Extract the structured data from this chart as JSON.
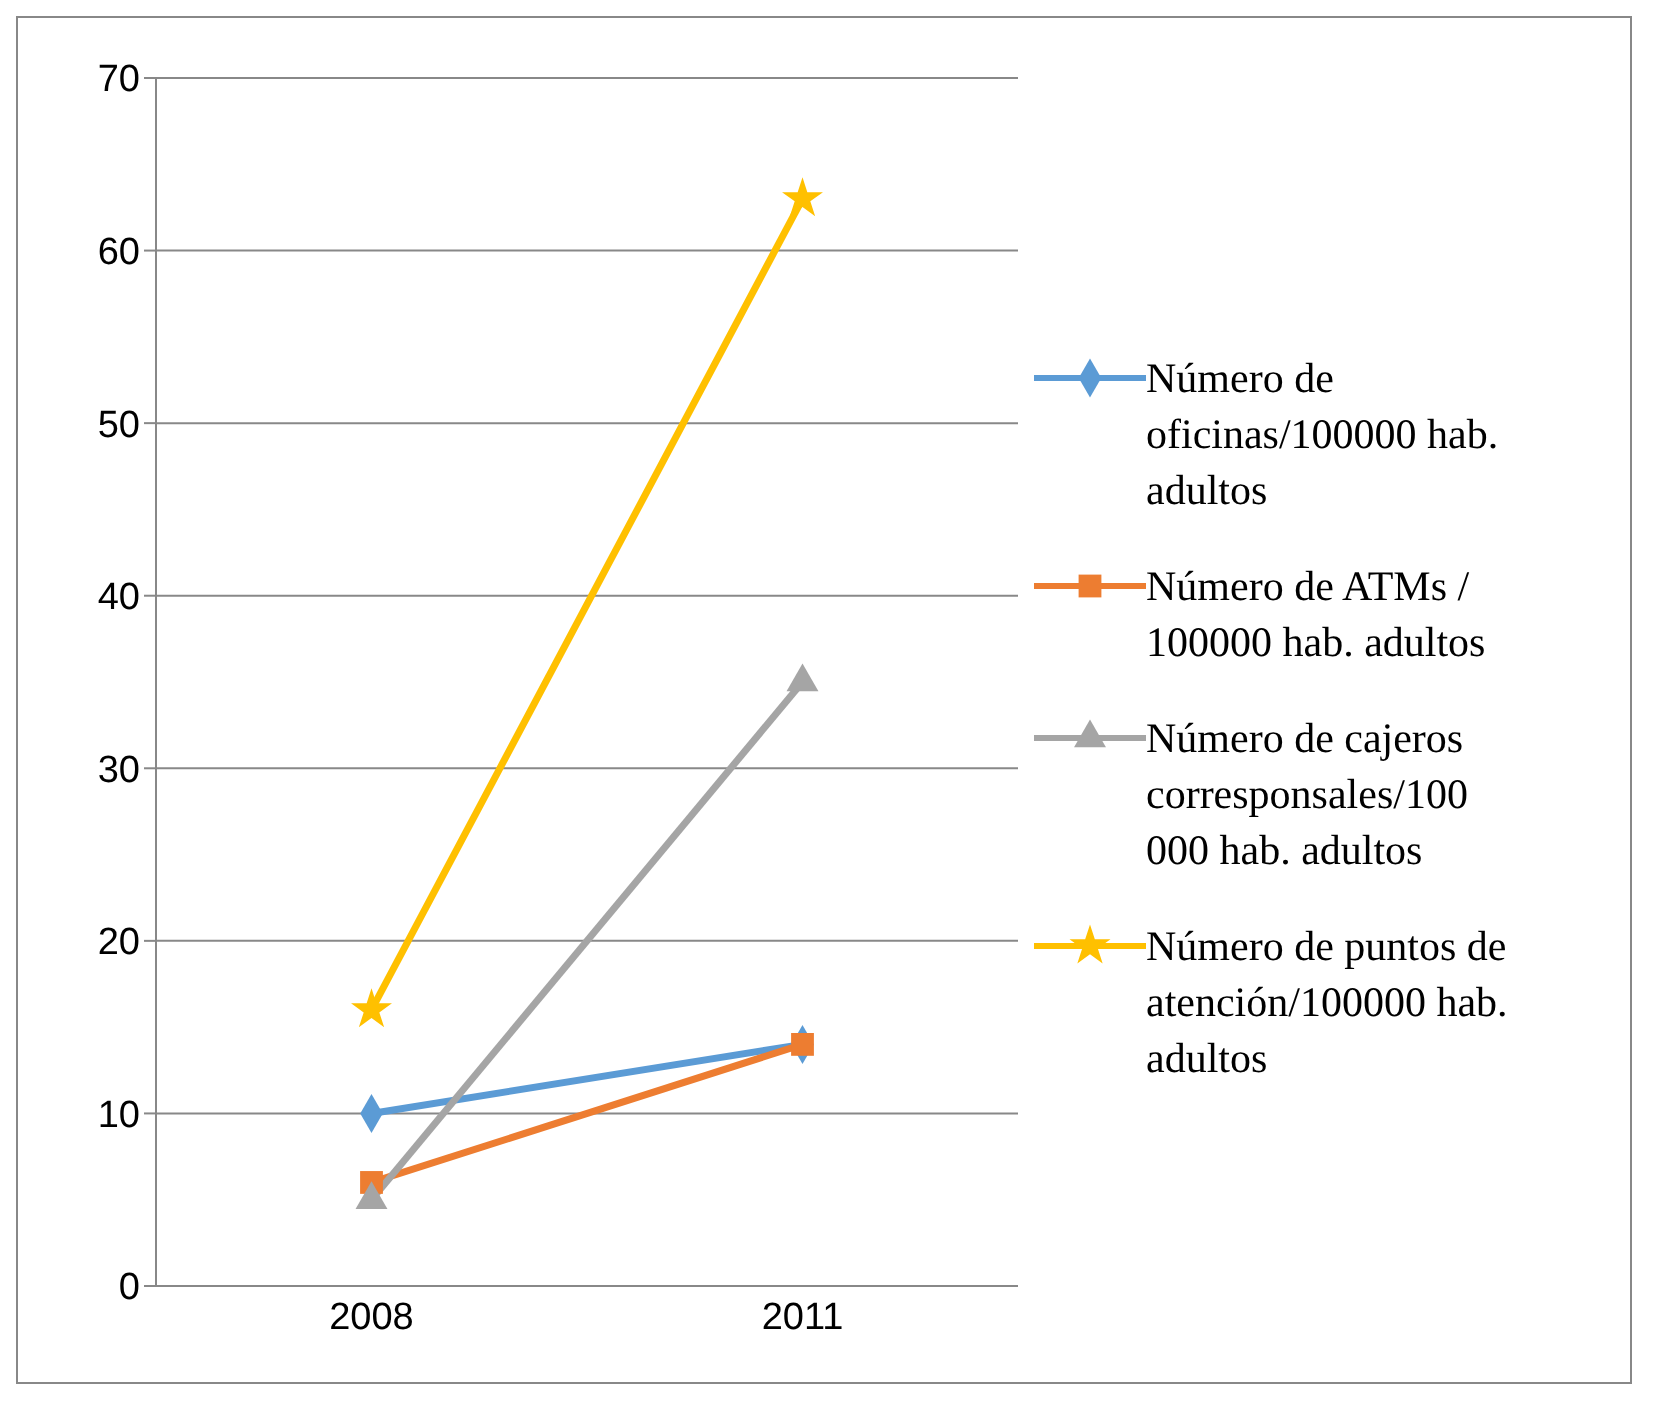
{
  "chart_data": {
    "type": "line",
    "categories": [
      "2008",
      "2011"
    ],
    "series": [
      {
        "name": "Número de oficinas/100000 hab. adultos",
        "color": "#5b9bd5",
        "values": [
          10,
          14
        ],
        "marker": "diamond"
      },
      {
        "name": "Número de ATMs / 100000 hab. adultos",
        "color": "#ed7d31",
        "values": [
          6,
          14
        ],
        "marker": "square"
      },
      {
        "name": "Número de cajeros corresponsales/100 000 hab. adultos",
        "color": "#a5a5a5",
        "values": [
          5,
          35
        ],
        "marker": "triangle"
      },
      {
        "name": "Número de puntos de atención/100000 hab. adultos",
        "color": "#ffc000",
        "values": [
          16,
          63
        ],
        "marker": "star"
      }
    ],
    "ylim": [
      0,
      70
    ],
    "yticks": [
      0,
      10,
      20,
      30,
      40,
      50,
      60,
      70
    ],
    "grid": "y",
    "legend": "right",
    "line_style": "solid"
  }
}
